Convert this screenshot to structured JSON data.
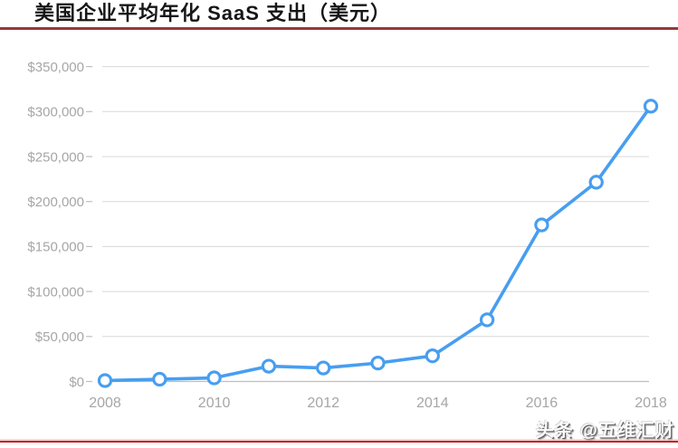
{
  "title": "美国企业平均年化 SaaS 支出（美元）",
  "watermark": "头条 @五维汇财",
  "colors": {
    "line": "#479ef0",
    "marker_fill": "#ffffff",
    "grid": "#d8d8d8",
    "axis": "#bfbfbf",
    "tick_label": "#a6a6a6",
    "title_text": "#161616",
    "title_underline": "#963a38",
    "bottom_rule": "#c4202e"
  },
  "chart_data": {
    "type": "line",
    "title": "美国企业平均年化 SaaS 支出（美元）",
    "x": [
      2008,
      2009,
      2010,
      2011,
      2012,
      2013,
      2014,
      2015,
      2016,
      2017,
      2018
    ],
    "values": [
      1000,
      2500,
      4000,
      17000,
      15000,
      20500,
      28500,
      68500,
      174000,
      221500,
      306000
    ],
    "series_name": "平均年化 SaaS 支出",
    "x_tick_labels": [
      "2008",
      "2010",
      "2012",
      "2014",
      "2016",
      "2018"
    ],
    "y_tick_labels": [
      "$0",
      "$50,000",
      "$100,000",
      "$150,000",
      "$200,000",
      "$250,000",
      "$300,000",
      "$350,000"
    ],
    "ylim": [
      0,
      350000
    ],
    "y_step": 50000,
    "xlabel": "",
    "ylabel": "",
    "grid": "horizontal",
    "legend": "none",
    "marker": "open-circle"
  }
}
